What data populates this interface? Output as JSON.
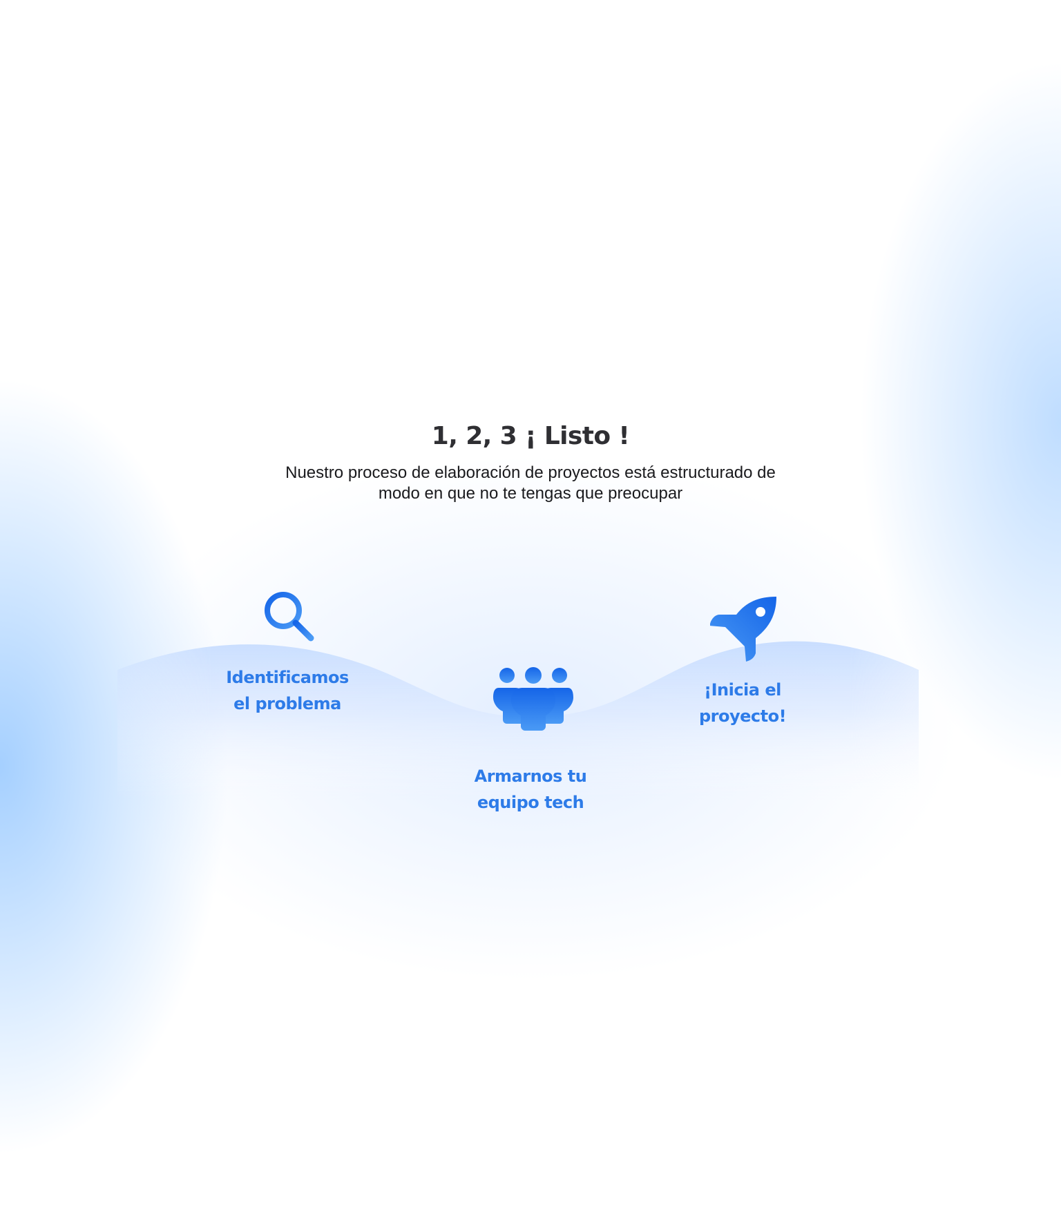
{
  "header": {
    "title": "1, 2, 3 ¡ Listo !",
    "subtitle": "Nuestro proceso de elaboración de proyectos está estructurado de modo en que no te tengas que preocupar"
  },
  "steps": [
    {
      "icon": "search-icon",
      "line1": "Identificamos",
      "line2": "el problema"
    },
    {
      "icon": "team-icon",
      "line1": "Armarnos tu",
      "line2": "equipo tech"
    },
    {
      "icon": "rocket-icon",
      "line1": "¡Inicia el",
      "line2": "proyecto!"
    }
  ],
  "colors": {
    "accent": "#2d7be8",
    "icon_dark": "#1565e8",
    "icon_light": "#4a9af5",
    "title": "#2f2f33"
  }
}
